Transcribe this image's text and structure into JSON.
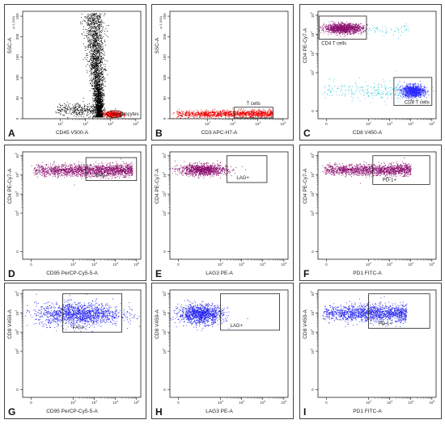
{
  "chart_data": [
    {
      "panel": "A",
      "type": "scatter",
      "xlabel": "CD45 V500-A",
      "ylabel": "SSC-A",
      "yscale_note": "(x 1,000)",
      "x_scale": "log",
      "xlim": [
        0.5,
        5.2
      ],
      "y_scale": "linear",
      "ylim": [
        0,
        262
      ],
      "x_ticks": [
        "10^2",
        "10^3",
        "10^4",
        "10^5"
      ],
      "y_ticks": [
        "0",
        "50",
        "100",
        "150",
        "200",
        "250"
      ],
      "populations": [
        {
          "color": "#000000",
          "n": 2600,
          "x": [
            3.15,
            3.95
          ],
          "y": [
            5,
            258
          ],
          "shape": "comet"
        },
        {
          "color": "#000000",
          "n": 300,
          "x": [
            1.8,
            3.4
          ],
          "y": [
            3,
            40
          ],
          "shape": "band"
        },
        {
          "color": "#ff0000",
          "n": 500,
          "x": [
            3.7,
            4.5
          ],
          "y": [
            3,
            20
          ],
          "shape": "blob"
        }
      ],
      "gates": [
        {
          "label": "lymphocytes",
          "x": [
            3.85,
            4.5
          ],
          "y": [
            3,
            20
          ],
          "shape": "ellipse"
        }
      ]
    },
    {
      "panel": "B",
      "type": "scatter",
      "xlabel": "CD3 APC-H7-A",
      "ylabel": "SSC-A",
      "yscale_note": "(x 1,000)",
      "x_scale": "log",
      "xlim": [
        0.5,
        5.2
      ],
      "y_scale": "linear",
      "ylim": [
        0,
        262
      ],
      "x_ticks": [
        "10^2",
        "10^3",
        "10^4",
        "10^5"
      ],
      "y_ticks": [
        "0",
        "50",
        "100",
        "150",
        "200",
        "250"
      ],
      "populations": [
        {
          "color": "#ee0000",
          "n": 1200,
          "x": [
            0.6,
            4.6
          ],
          "y": [
            3,
            22
          ],
          "shape": "band"
        }
      ],
      "gates": [
        {
          "label": "T cells",
          "x": [
            3.05,
            4.6
          ],
          "y": [
            2,
            28
          ],
          "shape": "rect"
        }
      ]
    },
    {
      "panel": "C",
      "type": "scatter",
      "xlabel": "CD8 V450-A",
      "ylabel": "CD4 PE-Cy7-A",
      "x_scale": "biexp",
      "xlim": [
        -0.4,
        5.2
      ],
      "y_scale": "biexp",
      "ylim": [
        -0.4,
        5.2
      ],
      "x_ticks": [
        "0",
        "10^2",
        "10^3",
        "10^4",
        "10^5"
      ],
      "y_ticks": [
        "0",
        "10^2",
        "10^3",
        "10^4",
        "10^5"
      ],
      "populations": [
        {
          "color": "#8b0f6e",
          "n": 1200,
          "x": [
            -0.2,
            1.8
          ],
          "y": [
            4.05,
            4.6
          ],
          "shape": "blob"
        },
        {
          "color": "#2a2aff",
          "n": 1000,
          "x": [
            3.5,
            4.7
          ],
          "y": [
            0.7,
            1.4
          ],
          "shape": "blob"
        },
        {
          "color": "#33ccdd",
          "n": 250,
          "x": [
            -0.2,
            3.6
          ],
          "y": [
            0.5,
            1.6
          ],
          "shape": "band"
        },
        {
          "color": "#33ccdd",
          "n": 60,
          "x": [
            1.8,
            4.0
          ],
          "y": [
            3.9,
            4.6
          ],
          "shape": "band"
        }
      ],
      "gates": [
        {
          "label": "CD4 T cells",
          "x": [
            -0.35,
            1.9
          ],
          "y": [
            3.75,
            4.95
          ],
          "shape": "rect"
        },
        {
          "label": "CD8 T cells",
          "x": [
            3.2,
            5.0
          ],
          "y": [
            0.3,
            1.75
          ],
          "shape": "rect"
        }
      ]
    },
    {
      "panel": "D",
      "type": "scatter",
      "xlabel": "CD95 PerCP-Cy5-5-A",
      "ylabel": "CD4 PE-Cy7-A",
      "x_scale": "biexp",
      "xlim": [
        -0.4,
        5.2
      ],
      "y_scale": "biexp",
      "ylim": [
        -0.4,
        5.2
      ],
      "x_ticks": [
        "0",
        "10^2",
        "10^3",
        "10^4",
        "10^5"
      ],
      "y_ticks": [
        "0",
        "10^2",
        "10^3",
        "10^4",
        "10^5"
      ],
      "populations": [
        {
          "color": "#8b0f6e",
          "n": 1800,
          "x": [
            0.0,
            4.8
          ],
          "y": [
            3.9,
            4.6
          ],
          "shape": "band"
        }
      ],
      "gates": [
        {
          "label": "FAS+",
          "x": [
            2.6,
            5.0
          ],
          "y": [
            3.7,
            4.9
          ],
          "shape": "rect"
        }
      ]
    },
    {
      "panel": "E",
      "type": "scatter",
      "xlabel": "LAG3 PE-A",
      "ylabel": "CD4 PE-Cy7-A",
      "x_scale": "biexp",
      "xlim": [
        -0.4,
        5.2
      ],
      "y_scale": "biexp",
      "ylim": [
        -0.4,
        5.2
      ],
      "x_ticks": [
        "0",
        "10^2",
        "10^3",
        "10^4",
        "10^5"
      ],
      "y_ticks": [
        "0",
        "10^2",
        "10^3",
        "10^4",
        "10^5"
      ],
      "populations": [
        {
          "color": "#8b0f6e",
          "n": 1100,
          "x": [
            -0.1,
            2.4
          ],
          "y": [
            3.95,
            4.6
          ],
          "shape": "blob"
        }
      ],
      "gates": [
        {
          "label": "LAG+",
          "x": [
            2.3,
            4.2
          ],
          "y": [
            3.6,
            5.0
          ],
          "shape": "rect"
        }
      ]
    },
    {
      "panel": "F",
      "type": "scatter",
      "xlabel": "PD1 FITC-A",
      "ylabel": "CD4 PE-Cy7-A",
      "x_scale": "biexp",
      "xlim": [
        -0.4,
        5.2
      ],
      "y_scale": "biexp",
      "ylim": [
        -0.4,
        5.2
      ],
      "x_ticks": [
        "0",
        "10^2",
        "10^3",
        "10^4",
        "10^5"
      ],
      "y_ticks": [
        "0",
        "10^2",
        "10^3",
        "10^4",
        "10^5"
      ],
      "populations": [
        {
          "color": "#8b0f6e",
          "n": 1500,
          "x": [
            -0.2,
            4.0
          ],
          "y": [
            3.95,
            4.6
          ],
          "shape": "band"
        }
      ],
      "gates": [
        {
          "label": "PD-1+",
          "x": [
            2.2,
            4.9
          ],
          "y": [
            3.5,
            5.0
          ],
          "shape": "rect"
        }
      ]
    },
    {
      "panel": "G",
      "type": "scatter",
      "xlabel": "CD95 PerCP-Cy5-5-A",
      "ylabel": "CD8 V450-A",
      "x_scale": "biexp",
      "xlim": [
        -0.4,
        5.2
      ],
      "y_scale": "biexp",
      "ylim": [
        -0.4,
        5.2
      ],
      "x_ticks": [
        "0",
        "10^2",
        "10^3",
        "10^4",
        "10^5"
      ],
      "y_ticks": [
        "0",
        "10^2",
        "10^3",
        "10^4",
        "10^5"
      ],
      "populations": [
        {
          "color": "#2222ee",
          "n": 1500,
          "x": [
            0.0,
            4.5
          ],
          "y": [
            3.3,
            4.6
          ],
          "shape": "blob"
        }
      ],
      "gates": [
        {
          "label": "FAS+",
          "x": [
            1.5,
            4.3
          ],
          "y": [
            3.0,
            5.0
          ],
          "shape": "rect"
        }
      ]
    },
    {
      "panel": "H",
      "type": "scatter",
      "xlabel": "LAG3 PE-A",
      "ylabel": "CD8 V450-A",
      "x_scale": "biexp",
      "xlim": [
        -0.4,
        5.2
      ],
      "y_scale": "biexp",
      "ylim": [
        -0.4,
        5.2
      ],
      "x_ticks": [
        "0",
        "10^2",
        "10^3",
        "10^4",
        "10^5"
      ],
      "y_ticks": [
        "0",
        "10^2",
        "10^3",
        "10^4",
        "10^5"
      ],
      "populations": [
        {
          "color": "#2222ee",
          "n": 1200,
          "x": [
            -0.1,
            2.2
          ],
          "y": [
            3.4,
            4.5
          ],
          "shape": "blob"
        }
      ],
      "gates": [
        {
          "label": "LAG+",
          "x": [
            2.0,
            4.8
          ],
          "y": [
            3.1,
            5.0
          ],
          "shape": "rect"
        }
      ]
    },
    {
      "panel": "I",
      "type": "scatter",
      "xlabel": "PD1 FITC-A",
      "ylabel": "CD8 V450-A",
      "x_scale": "biexp",
      "xlim": [
        -0.4,
        5.2
      ],
      "y_scale": "biexp",
      "ylim": [
        -0.4,
        5.2
      ],
      "x_ticks": [
        "0",
        "10^2",
        "10^3",
        "10^4",
        "10^5"
      ],
      "y_ticks": [
        "0",
        "10^2",
        "10^3",
        "10^4",
        "10^5"
      ],
      "populations": [
        {
          "color": "#2222ee",
          "n": 1500,
          "x": [
            -0.2,
            3.8
          ],
          "y": [
            3.5,
            4.5
          ],
          "shape": "band"
        }
      ],
      "gates": [
        {
          "label": "PD-1+",
          "x": [
            2.0,
            4.9
          ],
          "y": [
            3.2,
            5.0
          ],
          "shape": "rect"
        }
      ]
    }
  ]
}
